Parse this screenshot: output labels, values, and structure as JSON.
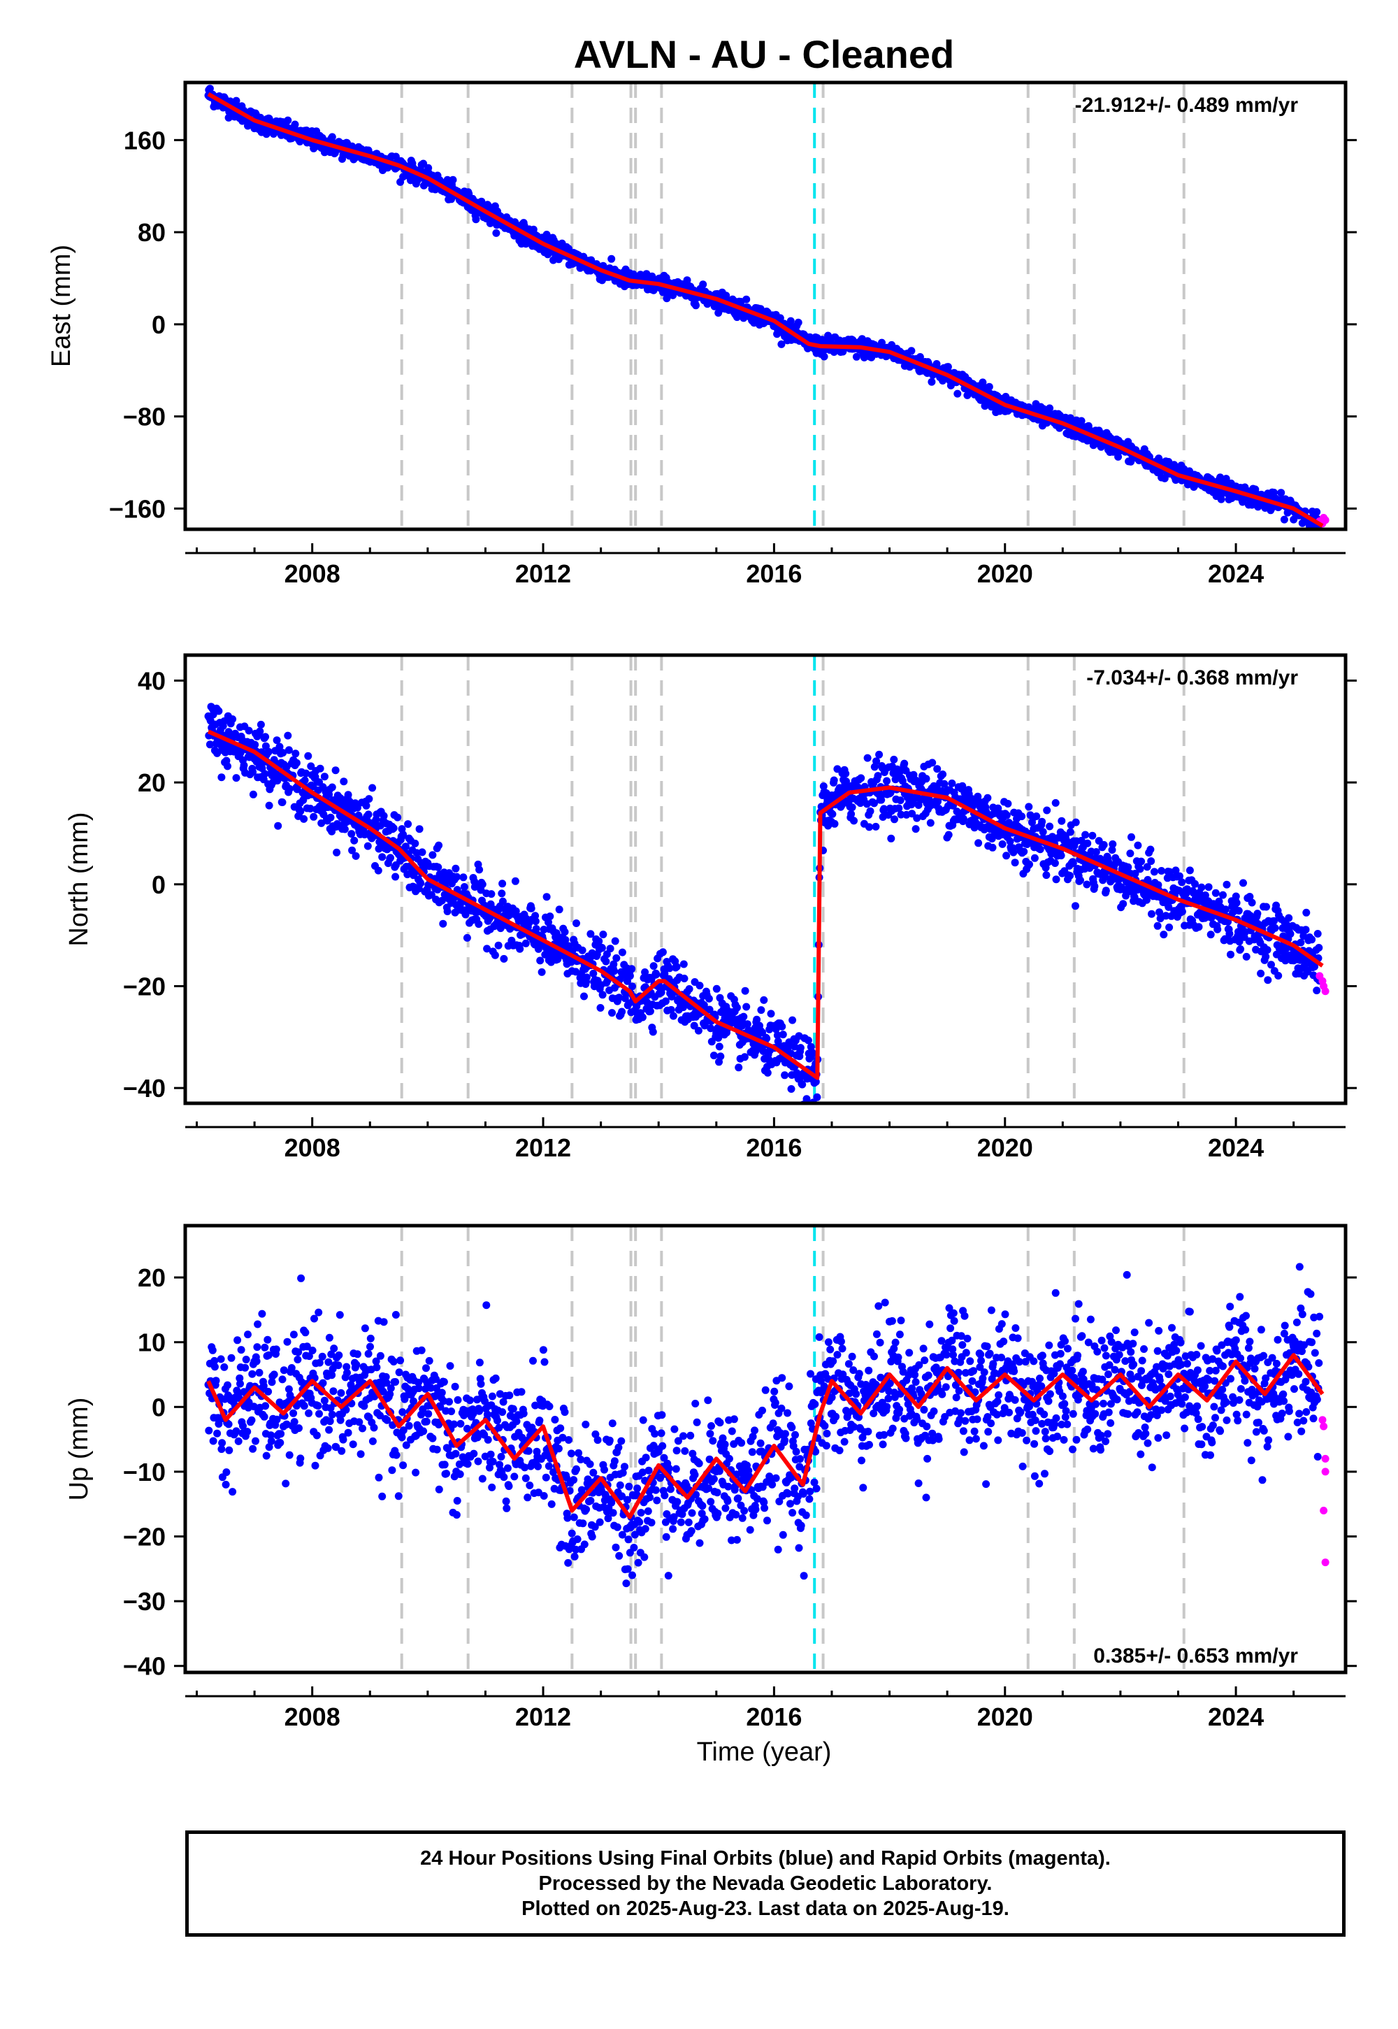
{
  "title": "AVLN  - AU - Cleaned",
  "xlabel": "Time (year)",
  "caption": [
    "24 Hour Positions Using Final Orbits (blue) and Rapid Orbits (magenta).",
    "Processed by the Nevada Geodetic Laboratory.",
    "Plotted on 2025-Aug-23. Last data on 2025-Aug-19."
  ],
  "colors": {
    "final_orbits": "#0000ff",
    "rapid_orbits": "#ff00ff",
    "model": "#ff0000",
    "event_lines": "#c8c8c8",
    "antenna_change_line": "#00e5ee"
  },
  "chart_data": [
    {
      "type": "scatter",
      "panel": "east",
      "ylabel": "East (mm)",
      "rate_text": "-21.912+/- 0.489 mm/yr",
      "rate_position": "top-right",
      "xlim": [
        2005.8,
        2025.9
      ],
      "ylim": [
        -178,
        210
      ],
      "yticks": [
        160,
        80,
        0,
        -80,
        -160
      ],
      "xticks": [
        2008,
        2012,
        2016,
        2020,
        2024
      ],
      "series": [],
      "trend": {
        "x": [
          2006.2,
          2007.0,
          2008.0,
          2009.0,
          2009.5,
          2010.0,
          2011.0,
          2012.0,
          2013.0,
          2013.5,
          2014.0,
          2015.0,
          2016.0,
          2016.6,
          2016.8,
          2017.5,
          2018.0,
          2019.0,
          2020.0,
          2021.0,
          2022.0,
          2023.0,
          2024.0,
          2025.0,
          2025.5
        ],
        "y": [
          200,
          177,
          160,
          146,
          138,
          127,
          98,
          70,
          47,
          38,
          35,
          22,
          3,
          -17,
          -19,
          -20,
          -24,
          -44,
          -70,
          -86,
          -107,
          -131,
          -145,
          -160,
          -175
        ]
      },
      "rapid": {
        "x": [
          2025.45,
          2025.5,
          2025.52,
          2025.55
        ],
        "y": [
          -171,
          -173,
          -168,
          -170
        ]
      }
    },
    {
      "type": "scatter",
      "panel": "north",
      "ylabel": "North (mm)",
      "rate_text": "-7.034+/- 0.368 mm/yr",
      "rate_position": "top-right",
      "xlim": [
        2005.8,
        2025.9
      ],
      "ylim": [
        -43,
        45
      ],
      "yticks": [
        40,
        20,
        0,
        -20,
        -40
      ],
      "xticks": [
        2008,
        2012,
        2016,
        2020,
        2024
      ],
      "series": [],
      "trend": {
        "x": [
          2006.2,
          2007.0,
          2008.0,
          2009.0,
          2009.5,
          2010.0,
          2011.0,
          2012.0,
          2013.0,
          2013.5,
          2013.6,
          2014.0,
          2014.1,
          2015.0,
          2016.0,
          2016.75,
          2016.8,
          2017.3,
          2018.0,
          2019.0,
          2020.0,
          2021.0,
          2022.0,
          2023.0,
          2024.0,
          2025.0,
          2025.5
        ],
        "y": [
          30,
          26,
          18,
          11,
          7,
          1,
          -5,
          -11,
          -17,
          -21,
          -23,
          -19,
          -19,
          -27,
          -32,
          -38,
          14,
          18,
          19,
          17,
          11,
          7,
          2,
          -3,
          -7,
          -12,
          -16
        ]
      },
      "rapid": {
        "x": [
          2025.45,
          2025.5,
          2025.52,
          2025.55
        ],
        "y": [
          -18,
          -19,
          -20,
          -21
        ]
      }
    },
    {
      "type": "scatter",
      "panel": "up",
      "ylabel": "Up (mm)",
      "rate_text": "0.385+/- 0.653 mm/yr",
      "rate_position": "bottom-right",
      "xlim": [
        2005.8,
        2025.9
      ],
      "ylim": [
        -41,
        28
      ],
      "yticks": [
        20,
        10,
        0,
        -10,
        -20,
        -30,
        -40
      ],
      "xticks": [
        2008,
        2012,
        2016,
        2020,
        2024
      ],
      "series": [],
      "trend": {
        "x": [
          2006.2,
          2006.5,
          2007.0,
          2007.5,
          2008.0,
          2008.5,
          2009.0,
          2009.5,
          2010.0,
          2010.5,
          2011.0,
          2011.5,
          2012.0,
          2012.5,
          2013.0,
          2013.5,
          2014.0,
          2014.5,
          2015.0,
          2015.5,
          2016.0,
          2016.5,
          2016.8,
          2017.0,
          2017.5,
          2018.0,
          2018.5,
          2019.0,
          2019.5,
          2020.0,
          2020.5,
          2021.0,
          2021.5,
          2022.0,
          2022.5,
          2023.0,
          2023.5,
          2024.0,
          2024.5,
          2025.0,
          2025.5
        ],
        "y": [
          4,
          -2,
          3,
          -1,
          4,
          0,
          4,
          -3,
          2,
          -6,
          -2,
          -8,
          -3,
          -16,
          -11,
          -17,
          -9,
          -14,
          -8,
          -13,
          -6,
          -12,
          -1,
          4,
          -1,
          5,
          0,
          6,
          1,
          5,
          1,
          5,
          1,
          5,
          0,
          5,
          1,
          7,
          2,
          8,
          2
        ]
      },
      "rapid": {
        "x": [
          2025.5,
          2025.52,
          2025.55,
          2025.55,
          2025.52,
          2025.55
        ],
        "y": [
          -2,
          -3,
          -8,
          -10,
          -16,
          -24
        ]
      }
    }
  ]
}
